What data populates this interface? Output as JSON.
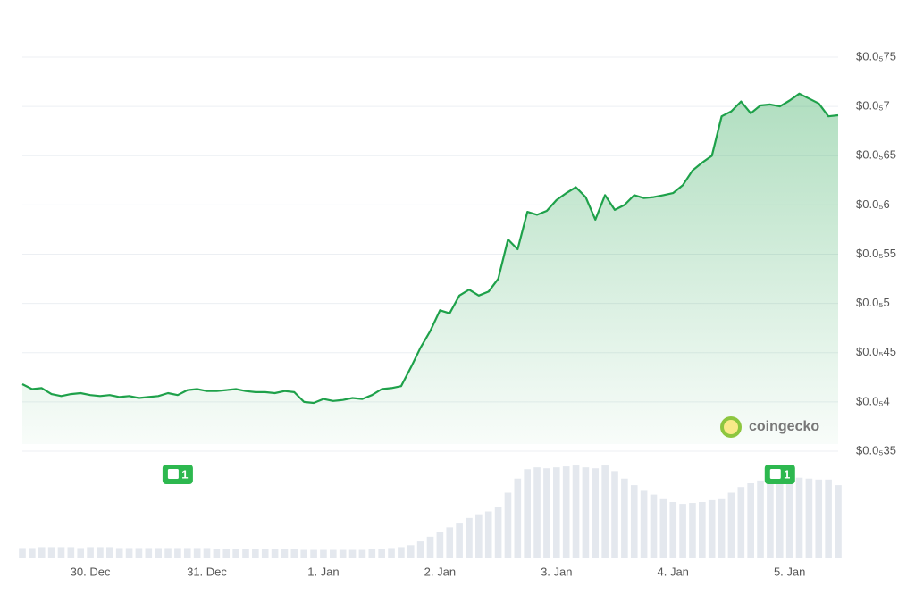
{
  "chart_data": {
    "type": "line",
    "categories": [
      null,
      null,
      null,
      null,
      null,
      null,
      null,
      "30. Dec",
      null,
      null,
      null,
      null,
      null,
      null,
      null,
      null,
      null,
      null,
      null,
      "31. Dec",
      null,
      null,
      null,
      null,
      null,
      null,
      null,
      null,
      null,
      null,
      null,
      "1. Jan",
      null,
      null,
      null,
      null,
      null,
      null,
      null,
      null,
      null,
      null,
      null,
      "2. Jan",
      null,
      null,
      null,
      null,
      null,
      null,
      null,
      null,
      null,
      null,
      null,
      "3. Jan",
      null,
      null,
      null,
      null,
      null,
      null,
      null,
      null,
      null,
      null,
      null,
      "4. Jan",
      null,
      null,
      null,
      null,
      null,
      null,
      null,
      null,
      null,
      null,
      null,
      "5. Jan",
      null,
      null,
      null,
      null,
      null
    ],
    "values": [
      4.18e-06,
      4.13e-06,
      4.14e-06,
      4.08e-06,
      4.06e-06,
      4.08e-06,
      4.09e-06,
      4.07e-06,
      4.06e-06,
      4.07e-06,
      4.05e-06,
      4.06e-06,
      4.04e-06,
      4.05e-06,
      4.06e-06,
      4.09e-06,
      4.07e-06,
      4.12e-06,
      4.13e-06,
      4.11e-06,
      4.11e-06,
      4.12e-06,
      4.13e-06,
      4.11e-06,
      4.1e-06,
      4.1e-06,
      4.09e-06,
      4.11e-06,
      4.1e-06,
      4e-06,
      3.99e-06,
      4.03e-06,
      4.01e-06,
      4.02e-06,
      4.04e-06,
      4.03e-06,
      4.07e-06,
      4.13e-06,
      4.14e-06,
      4.16e-06,
      4.35e-06,
      4.55e-06,
      4.72e-06,
      4.93e-06,
      4.9e-06,
      5.08e-06,
      5.14e-06,
      5.08e-06,
      5.12e-06,
      5.25e-06,
      5.65e-06,
      5.55e-06,
      5.93e-06,
      5.9e-06,
      5.94e-06,
      6.05e-06,
      6.12e-06,
      6.18e-06,
      6.08e-06,
      5.85e-06,
      6.1e-06,
      5.95e-06,
      6e-06,
      6.1e-06,
      6.07e-06,
      6.08e-06,
      6.1e-06,
      6.12e-06,
      6.2e-06,
      6.35e-06,
      6.43e-06,
      6.5e-06,
      6.9e-06,
      6.95e-06,
      7.05e-06,
      6.93e-06,
      7.01e-06,
      7.02e-06,
      7e-06,
      7.06e-06,
      7.13e-06,
      7.08e-06,
      7.03e-06,
      6.9e-06,
      6.91e-06
    ],
    "color": "#1ea14a",
    "ylim": [
      3.5e-06,
      7.5e-06
    ],
    "yticks": [
      {
        "value": 3.5e-06,
        "label": "$0.0₅35"
      },
      {
        "value": 4e-06,
        "label": "$0.0₅4"
      },
      {
        "value": 4.5e-06,
        "label": "$0.0₅45"
      },
      {
        "value": 5e-06,
        "label": "$0.0₅5"
      },
      {
        "value": 5.5e-06,
        "label": "$0.0₅55"
      },
      {
        "value": 6e-06,
        "label": "$0.0₅6"
      },
      {
        "value": 6.5e-06,
        "label": "$0.0₅65"
      },
      {
        "value": 7e-06,
        "label": "$0.0₅7"
      },
      {
        "value": 7.5e-06,
        "label": "$0.0₅75"
      }
    ],
    "grid": true,
    "volume": {
      "color": "#e4e8ee",
      "ylim": [
        0,
        100
      ],
      "values": [
        11,
        11,
        12,
        12,
        12,
        12,
        11,
        12,
        12,
        12,
        11,
        11,
        11,
        11,
        11,
        11,
        11,
        11,
        11,
        11,
        10,
        10,
        10,
        10,
        10,
        10,
        10,
        10,
        10,
        9,
        9,
        9,
        9,
        9,
        9,
        9,
        10,
        10,
        11,
        12,
        14,
        18,
        23,
        28,
        33,
        38,
        43,
        47,
        50,
        55,
        70,
        85,
        95,
        97,
        96,
        97,
        98,
        99,
        97,
        96,
        99,
        93,
        85,
        78,
        72,
        68,
        64,
        60,
        58,
        59,
        60,
        62,
        64,
        70,
        76,
        80,
        83,
        85,
        85,
        86,
        86,
        85,
        84,
        84,
        78
      ]
    },
    "events": [
      {
        "index": 16,
        "label": "1"
      },
      {
        "index": 78,
        "label": "1"
      }
    ],
    "watermark": "coingecko"
  }
}
